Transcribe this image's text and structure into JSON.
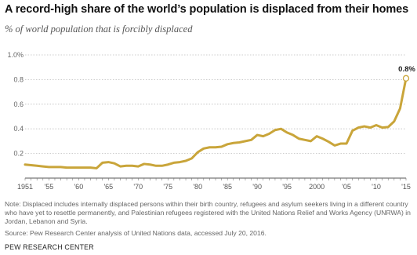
{
  "chart_data": {
    "type": "line",
    "title": "A record-high share of the world’s population is displaced from their homes",
    "subtitle": "% of world population that is forcibly displaced",
    "xlim": [
      1951,
      2015
    ],
    "ylim": [
      0,
      1.0
    ],
    "yticks": [
      0.2,
      0.4,
      0.6,
      0.8,
      1.0
    ],
    "ytick_labels": [
      "0.2",
      "0.4",
      "0.6",
      "0.8",
      "1.0%"
    ],
    "xtick_labels": [
      {
        "x": 1951,
        "label": "1951"
      },
      {
        "x": 1955,
        "label": "'55"
      },
      {
        "x": 1960,
        "label": "'60"
      },
      {
        "x": 1965,
        "label": "'65"
      },
      {
        "x": 1970,
        "label": "'70"
      },
      {
        "x": 1975,
        "label": "'75"
      },
      {
        "x": 1980,
        "label": "'80"
      },
      {
        "x": 1985,
        "label": "'85"
      },
      {
        "x": 1990,
        "label": "'90"
      },
      {
        "x": 1995,
        "label": "'95"
      },
      {
        "x": 2000,
        "label": "2000"
      },
      {
        "x": 2005,
        "label": "'05"
      },
      {
        "x": 2010,
        "label": "'10"
      },
      {
        "x": 2015,
        "label": "'15"
      }
    ],
    "grid": true,
    "color": "#c9a53a",
    "x": [
      1951,
      1952,
      1953,
      1954,
      1955,
      1956,
      1957,
      1958,
      1959,
      1960,
      1961,
      1962,
      1963,
      1964,
      1965,
      1966,
      1967,
      1968,
      1969,
      1970,
      1971,
      1972,
      1973,
      1974,
      1975,
      1976,
      1977,
      1978,
      1979,
      1980,
      1981,
      1982,
      1983,
      1984,
      1985,
      1986,
      1987,
      1988,
      1989,
      1990,
      1991,
      1992,
      1993,
      1994,
      1995,
      1996,
      1997,
      1998,
      1999,
      2000,
      2001,
      2002,
      2003,
      2004,
      2005,
      2006,
      2007,
      2008,
      2009,
      2010,
      2011,
      2012,
      2013,
      2014,
      2015
    ],
    "y": [
      0.11,
      0.105,
      0.1,
      0.095,
      0.09,
      0.09,
      0.09,
      0.085,
      0.085,
      0.085,
      0.085,
      0.085,
      0.08,
      0.125,
      0.13,
      0.12,
      0.095,
      0.1,
      0.1,
      0.095,
      0.115,
      0.11,
      0.1,
      0.1,
      0.11,
      0.125,
      0.13,
      0.14,
      0.16,
      0.21,
      0.24,
      0.25,
      0.25,
      0.255,
      0.275,
      0.285,
      0.29,
      0.3,
      0.31,
      0.35,
      0.34,
      0.36,
      0.39,
      0.4,
      0.37,
      0.35,
      0.32,
      0.31,
      0.3,
      0.34,
      0.32,
      0.295,
      0.265,
      0.28,
      0.28,
      0.385,
      0.41,
      0.42,
      0.41,
      0.43,
      0.41,
      0.415,
      0.46,
      0.565,
      0.81
    ],
    "end_label": "0.8%"
  },
  "note": "Note: Displaced includes internally displaced persons within their birth country, refugees and asylum seekers living in a different country who have yet to resettle permanently, and Palestinian refugees registered with the United Nations Relief and Works Agency (UNRWA) in Jordan, Lebanon and Syria.",
  "source": "Source: Pew Research Center analysis of United Nations data, accessed July 20, 2016.",
  "brand": "PEW RESEARCH CENTER"
}
